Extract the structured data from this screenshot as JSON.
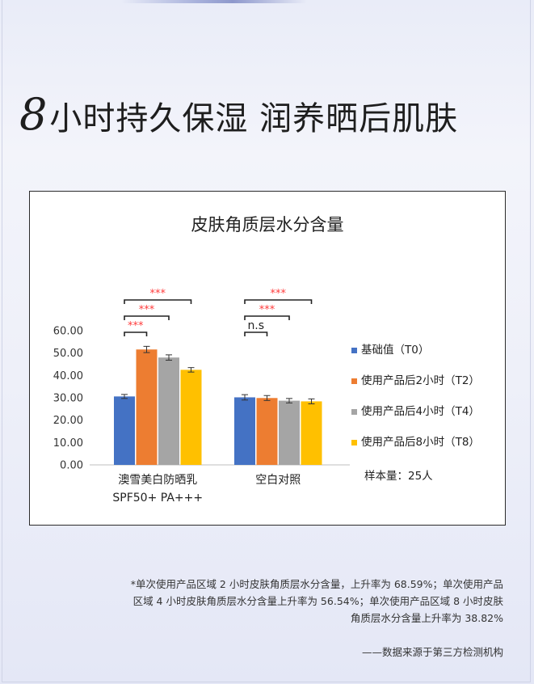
{
  "headline": {
    "number": "8",
    "text": "小时持久保湿 润养晒后肌肤"
  },
  "chart_data": {
    "type": "bar",
    "title": "皮肤角质层水分含量",
    "categories": [
      "澳雪美白防晒乳\nSPF50+ PA+++",
      "空白对照"
    ],
    "y_ticks": [
      "0.00",
      "10.00",
      "20.00",
      "30.00",
      "40.00",
      "50.00",
      "60.00"
    ],
    "ylim": [
      0,
      60
    ],
    "series": [
      {
        "name": "基础值（T0）",
        "color": "#4472c4",
        "values": [
          30.6,
          30.2
        ],
        "errors": [
          0.9,
          1.2
        ]
      },
      {
        "name": "使用产品后2小时（T2）",
        "color": "#ed7d31",
        "values": [
          51.6,
          29.9
        ],
        "errors": [
          1.4,
          1.1
        ]
      },
      {
        "name": "使用产品后4小时（T4）",
        "color": "#a5a5a5",
        "values": [
          48.0,
          28.7
        ],
        "errors": [
          1.2,
          1.0
        ]
      },
      {
        "name": "使用产品后8小时（T8）",
        "color": "#ffc000",
        "values": [
          42.5,
          28.4
        ],
        "errors": [
          1.0,
          1.1
        ]
      }
    ],
    "significance": [
      {
        "group": 0,
        "from_series": 0,
        "to_series": 1,
        "label": "***"
      },
      {
        "group": 0,
        "from_series": 0,
        "to_series": 2,
        "label": "***"
      },
      {
        "group": 0,
        "from_series": 0,
        "to_series": 3,
        "label": "***"
      },
      {
        "group": 1,
        "from_series": 0,
        "to_series": 1,
        "label": "n.s"
      },
      {
        "group": 1,
        "from_series": 0,
        "to_series": 2,
        "label": "***"
      },
      {
        "group": 1,
        "from_series": 0,
        "to_series": 3,
        "label": "***"
      }
    ],
    "sample_note": "样本量：25人",
    "significance_color": "#ff3b3b"
  },
  "footnote": "*单次使用产品区域 2 小时皮肤角质层水分含量，上升率为 68.59%；单次使用产品区域 4 小时皮肤角质层水分含量上升率为 56.54%；单次使用产品区域 8 小时皮肤角质层水分含量上升率为 38.82%",
  "source": "——数据来源于第三方检测机构"
}
